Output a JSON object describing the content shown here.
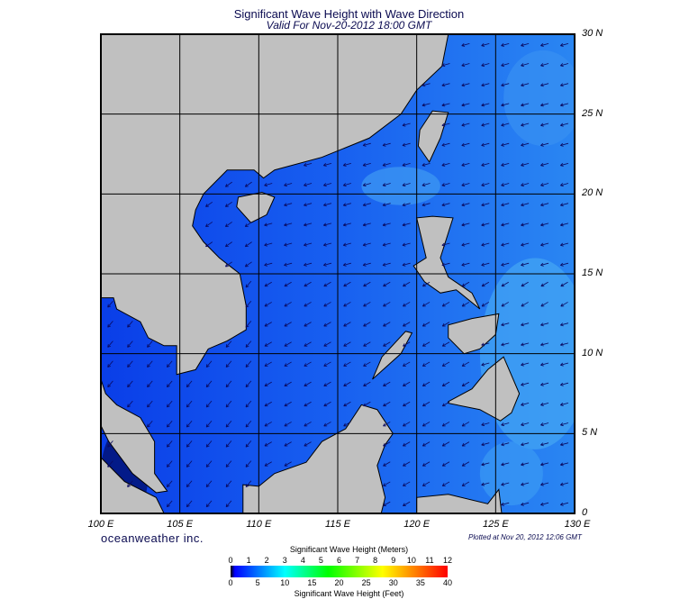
{
  "title": "Significant Wave Height with Wave Direction",
  "subtitle": "Valid For Nov-20-2012 18:00 GMT",
  "map": {
    "lon_range": [
      100,
      130
    ],
    "lat_range": [
      0,
      30
    ],
    "lon_labels": [
      "100 E",
      "105 E",
      "110 E",
      "115 E",
      "120 E",
      "125 E",
      "130 E"
    ],
    "lat_labels": [
      "30 N",
      "25 N",
      "20 N",
      "15 N",
      "10 N",
      "5 N",
      "0"
    ],
    "land_color": "#c0c0c0",
    "ocean_color": "#1a5ff0",
    "grid_color": "#000000",
    "prevailing_wave_direction": "from northeast / east-northeast"
  },
  "brand": "oceanweather inc.",
  "plotted": "Plotted at Nov 20, 2012 12:06 GMT",
  "colorbar": {
    "meters_label": "Significant Wave Height (Meters)",
    "feet_label": "Significant Wave Height (Feet)",
    "meters_ticks": [
      "0",
      "1",
      "2",
      "3",
      "4",
      "5",
      "6",
      "7",
      "8",
      "9",
      "10",
      "11",
      "12"
    ],
    "feet_ticks": [
      "0",
      "5",
      "10",
      "15",
      "20",
      "25",
      "30",
      "35",
      "40"
    ],
    "colors": [
      "#000000",
      "#0000ff",
      "#00ffff",
      "#00ff00",
      "#ffff00",
      "#ff0000"
    ]
  }
}
